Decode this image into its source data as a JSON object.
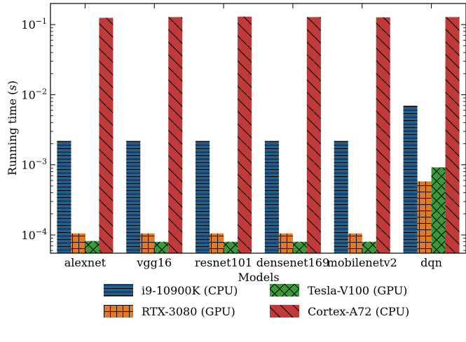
{
  "chart_data": {
    "type": "bar",
    "title": "",
    "xlabel": "Models",
    "ylabel": "Running time (s)",
    "ylabel_parts": {
      "prefix": "Running time (",
      "var": "s",
      "suffix": ")"
    },
    "yscale": "log",
    "ylim": [
      5.5e-05,
      0.2
    ],
    "yticks": [
      {
        "value": 0.0001,
        "base": "10",
        "exp": "−4"
      },
      {
        "value": 0.001,
        "base": "10",
        "exp": "−3"
      },
      {
        "value": 0.01,
        "base": "10",
        "exp": "−2"
      },
      {
        "value": 0.1,
        "base": "10",
        "exp": "−1"
      }
    ],
    "categories": [
      "alexnet",
      "vgg16",
      "resnet101",
      "densenet169",
      "mobilenetv2",
      "dqn"
    ],
    "series": [
      {
        "name": "i9-10900K (CPU)",
        "color": "#1f5f8b",
        "hatch": "horizontal",
        "values": [
          0.0022,
          0.0022,
          0.0022,
          0.0022,
          0.0022,
          0.007
        ]
      },
      {
        "name": "RTX-3080 (GPU)",
        "color": "#e07b24",
        "hatch": "grid",
        "values": [
          0.000105,
          0.000105,
          0.000105,
          0.000105,
          0.000105,
          0.00058
        ]
      },
      {
        "name": "Tesla-V100 (GPU)",
        "color": "#3a9a3a",
        "hatch": "cross",
        "values": [
          8.2e-05,
          8e-05,
          8e-05,
          8e-05,
          8e-05,
          0.00092
        ]
      },
      {
        "name": "Cortex-A72 (CPU)",
        "color": "#c03a3a",
        "hatch": "backslash",
        "values": [
          0.125,
          0.128,
          0.13,
          0.128,
          0.127,
          0.128
        ]
      }
    ],
    "grid": false,
    "legend": "bottom, 2 columns"
  }
}
